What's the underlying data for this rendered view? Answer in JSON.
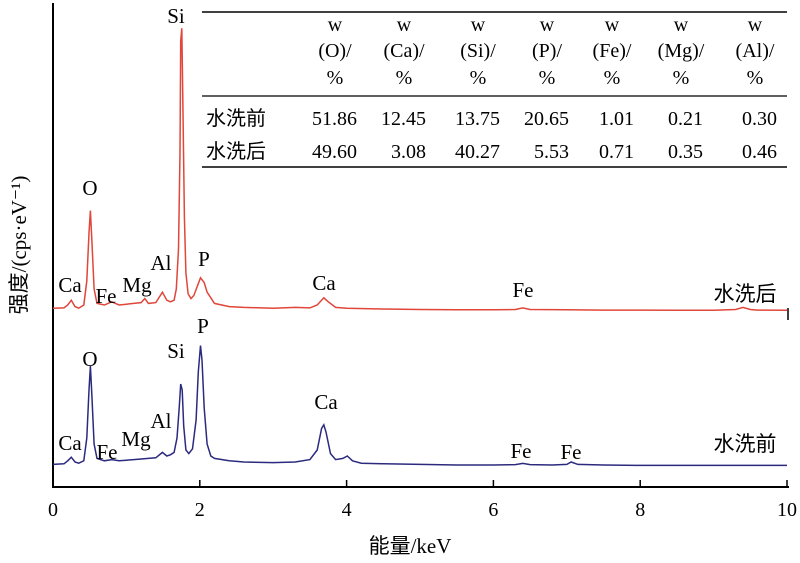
{
  "chart_data": {
    "type": "line",
    "xlabel": "能量/keV",
    "ylabel": "强度/(cps·eV⁻¹)",
    "xlim": [
      0,
      10
    ],
    "x_ticks": [
      "0",
      "2",
      "4",
      "6",
      "8",
      "10"
    ],
    "grid": false,
    "series": [
      {
        "name": "水洗后",
        "color": "#e0463a",
        "points": [
          [
            0.0,
            0.3
          ],
          [
            0.15,
            0.32
          ],
          [
            0.2,
            0.5
          ],
          [
            0.25,
            0.8
          ],
          [
            0.3,
            0.4
          ],
          [
            0.35,
            0.3
          ],
          [
            0.42,
            0.5
          ],
          [
            0.46,
            2.0
          ],
          [
            0.49,
            5.0
          ],
          [
            0.51,
            6.4
          ],
          [
            0.53,
            4.5
          ],
          [
            0.56,
            1.5
          ],
          [
            0.6,
            0.6
          ],
          [
            0.7,
            0.5
          ],
          [
            0.8,
            0.7
          ],
          [
            0.9,
            0.5
          ],
          [
            1.0,
            0.55
          ],
          [
            1.1,
            0.6
          ],
          [
            1.2,
            0.65
          ],
          [
            1.25,
            0.9
          ],
          [
            1.3,
            0.6
          ],
          [
            1.4,
            0.65
          ],
          [
            1.49,
            1.3
          ],
          [
            1.55,
            0.8
          ],
          [
            1.6,
            0.7
          ],
          [
            1.65,
            0.8
          ],
          [
            1.68,
            1.5
          ],
          [
            1.71,
            4.0
          ],
          [
            1.73,
            10.0
          ],
          [
            1.74,
            17.0
          ],
          [
            1.755,
            17.8
          ],
          [
            1.77,
            13.0
          ],
          [
            1.79,
            6.0
          ],
          [
            1.81,
            2.5
          ],
          [
            1.84,
            1.2
          ],
          [
            1.88,
            0.9
          ],
          [
            1.92,
            1.1
          ],
          [
            1.96,
            1.6
          ],
          [
            2.01,
            2.2
          ],
          [
            2.06,
            1.9
          ],
          [
            2.1,
            1.3
          ],
          [
            2.2,
            0.6
          ],
          [
            2.4,
            0.4
          ],
          [
            2.6,
            0.35
          ],
          [
            3.0,
            0.3
          ],
          [
            3.3,
            0.35
          ],
          [
            3.5,
            0.32
          ],
          [
            3.6,
            0.5
          ],
          [
            3.69,
            0.95
          ],
          [
            3.75,
            0.7
          ],
          [
            3.85,
            0.35
          ],
          [
            4.0,
            0.3
          ],
          [
            4.5,
            0.25
          ],
          [
            5.0,
            0.22
          ],
          [
            5.5,
            0.2
          ],
          [
            6.0,
            0.2
          ],
          [
            6.3,
            0.22
          ],
          [
            6.4,
            0.32
          ],
          [
            6.5,
            0.22
          ],
          [
            7.0,
            0.2
          ],
          [
            7.5,
            0.18
          ],
          [
            8.0,
            0.18
          ],
          [
            8.5,
            0.17
          ],
          [
            9.0,
            0.17
          ],
          [
            9.3,
            0.22
          ],
          [
            9.4,
            0.35
          ],
          [
            9.5,
            0.22
          ],
          [
            9.6,
            0.18
          ],
          [
            10.0,
            0.17
          ]
        ]
      },
      {
        "name": "水洗前",
        "color": "#2b2a7e",
        "points": [
          [
            0.0,
            0.3
          ],
          [
            0.15,
            0.35
          ],
          [
            0.2,
            0.6
          ],
          [
            0.25,
            0.9
          ],
          [
            0.3,
            0.5
          ],
          [
            0.35,
            0.4
          ],
          [
            0.42,
            0.6
          ],
          [
            0.46,
            2.5
          ],
          [
            0.49,
            6.5
          ],
          [
            0.51,
            8.5
          ],
          [
            0.53,
            6.0
          ],
          [
            0.56,
            2.0
          ],
          [
            0.6,
            0.8
          ],
          [
            0.7,
            0.6
          ],
          [
            0.8,
            0.7
          ],
          [
            0.9,
            0.6
          ],
          [
            1.0,
            0.65
          ],
          [
            1.1,
            0.7
          ],
          [
            1.2,
            0.75
          ],
          [
            1.3,
            0.8
          ],
          [
            1.4,
            0.85
          ],
          [
            1.49,
            1.3
          ],
          [
            1.55,
            1.0
          ],
          [
            1.6,
            1.1
          ],
          [
            1.65,
            1.3
          ],
          [
            1.69,
            2.5
          ],
          [
            1.72,
            5.0
          ],
          [
            1.74,
            7.0
          ],
          [
            1.76,
            6.5
          ],
          [
            1.78,
            3.5
          ],
          [
            1.81,
            1.5
          ],
          [
            1.85,
            1.2
          ],
          [
            1.9,
            1.6
          ],
          [
            1.95,
            4.0
          ],
          [
            1.98,
            8.0
          ],
          [
            2.01,
            10.2
          ],
          [
            2.03,
            9.0
          ],
          [
            2.06,
            5.0
          ],
          [
            2.1,
            2.0
          ],
          [
            2.15,
            1.0
          ],
          [
            2.2,
            0.8
          ],
          [
            2.4,
            0.6
          ],
          [
            2.6,
            0.5
          ],
          [
            3.0,
            0.45
          ],
          [
            3.3,
            0.5
          ],
          [
            3.5,
            0.7
          ],
          [
            3.6,
            1.5
          ],
          [
            3.66,
            3.3
          ],
          [
            3.69,
            3.6
          ],
          [
            3.72,
            3.0
          ],
          [
            3.78,
            1.2
          ],
          [
            3.85,
            0.7
          ],
          [
            3.95,
            0.8
          ],
          [
            4.01,
            1.0
          ],
          [
            4.08,
            0.6
          ],
          [
            4.2,
            0.4
          ],
          [
            4.5,
            0.35
          ],
          [
            5.0,
            0.3
          ],
          [
            5.5,
            0.25
          ],
          [
            6.0,
            0.25
          ],
          [
            6.3,
            0.28
          ],
          [
            6.4,
            0.38
          ],
          [
            6.5,
            0.28
          ],
          [
            6.8,
            0.25
          ],
          [
            7.0,
            0.3
          ],
          [
            7.06,
            0.5
          ],
          [
            7.15,
            0.3
          ],
          [
            7.5,
            0.25
          ],
          [
            8.0,
            0.22
          ],
          [
            8.5,
            0.22
          ],
          [
            9.0,
            0.22
          ],
          [
            9.5,
            0.22
          ],
          [
            10.0,
            0.22
          ]
        ]
      }
    ],
    "peak_labels": {
      "after": [
        "Si",
        "O",
        "Al",
        "P",
        "Ca",
        "Fe",
        "Mg",
        "Ca",
        "Fe"
      ],
      "before": [
        "O",
        "Si",
        "P",
        "Ca",
        "Al",
        "Ca",
        "Mg",
        "Fe",
        "Fe",
        "Fe"
      ]
    },
    "table": {
      "headers": [
        {
          "top": "w",
          "mid": "(O)/",
          "bottom": "%"
        },
        {
          "top": "w",
          "mid": "(Ca)/",
          "bottom": "%"
        },
        {
          "top": "w",
          "mid": "(Si)/",
          "bottom": "%"
        },
        {
          "top": "w",
          "mid": "(P)/",
          "bottom": "%"
        },
        {
          "top": "w",
          "mid": "(Fe)/",
          "bottom": "%"
        },
        {
          "top": "w",
          "mid": "(Mg)/",
          "bottom": "%"
        },
        {
          "top": "w",
          "mid": "(Al)/",
          "bottom": "%"
        }
      ],
      "rows": [
        {
          "label": "水洗前",
          "values": [
            "51.86",
            "12.45",
            "13.75",
            "20.65",
            "1.01",
            "0.21",
            "0.30"
          ]
        },
        {
          "label": "水洗后",
          "values": [
            "49.60",
            "3.08",
            "40.27",
            "5.53",
            "0.71",
            "0.35",
            "0.46"
          ]
        }
      ]
    }
  }
}
